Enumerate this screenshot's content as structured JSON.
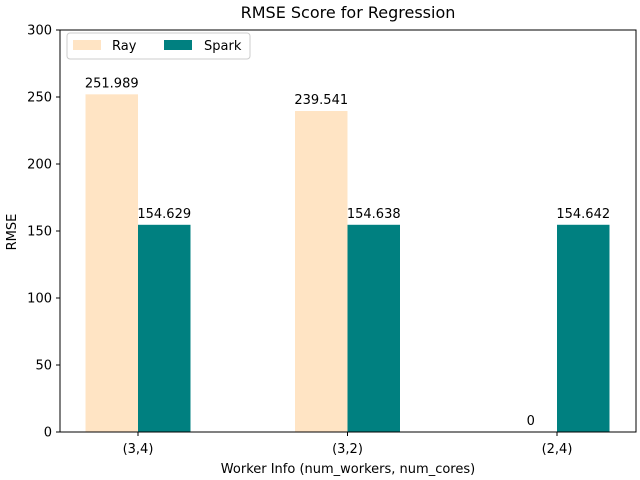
{
  "chart_data": {
    "type": "bar",
    "title": "RMSE Score for Regression",
    "xlabel": "Worker Info (num_workers, num_cores)",
    "ylabel": "RMSE",
    "categories": [
      "(3,4)",
      "(3,2)",
      "(2,4)"
    ],
    "series": [
      {
        "name": "Ray",
        "values": [
          251.989,
          239.541,
          0
        ],
        "labels": [
          "251.989",
          "239.541",
          "0"
        ],
        "color": "#ffe4c4"
      },
      {
        "name": "Spark",
        "values": [
          154.629,
          154.638,
          154.642
        ],
        "labels": [
          "154.629",
          "154.638",
          "154.642"
        ],
        "color": "#008080"
      }
    ],
    "ylim": [
      0,
      300
    ],
    "yticks": [
      0,
      50,
      100,
      150,
      200,
      250,
      300
    ],
    "ytick_labels": [
      "0",
      "50",
      "100",
      "150",
      "200",
      "250",
      "300"
    ],
    "grid": false,
    "legend_position": "top-left"
  }
}
